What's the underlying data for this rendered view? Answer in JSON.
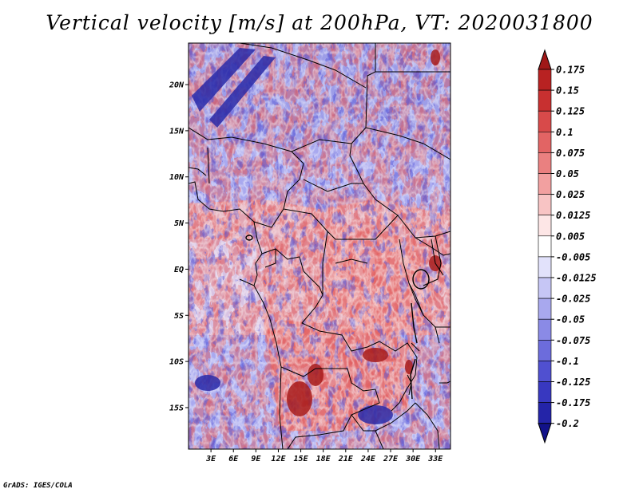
{
  "title": "Vertical velocity [m/s] at 200hPa, VT: 2020031800",
  "credit": "GrADS: IGES/COLA",
  "map": {
    "lat_labels": [
      "20N",
      "15N",
      "10N",
      "5N",
      "EQ",
      "5S",
      "10S",
      "15S"
    ],
    "lat_values": [
      20,
      15,
      10,
      5,
      0,
      -5,
      -10,
      -15
    ],
    "lon_labels": [
      "3E",
      "6E",
      "9E",
      "12E",
      "15E",
      "18E",
      "21E",
      "24E",
      "27E",
      "30E",
      "33E"
    ],
    "lon_values": [
      3,
      6,
      9,
      12,
      15,
      18,
      21,
      24,
      27,
      30,
      33
    ],
    "lon_range": [
      0,
      35
    ],
    "lat_range": [
      -19.5,
      24.5
    ]
  },
  "colorbar": {
    "labels": [
      "0.175",
      "0.15",
      "0.125",
      "0.1",
      "0.075",
      "0.05",
      "0.025",
      "0.0125",
      "0.005",
      "-0.005",
      "-0.0125",
      "-0.025",
      "-0.05",
      "-0.075",
      "-0.1",
      "-0.125",
      "-0.175",
      "-0.2"
    ],
    "colors": [
      "#a01818",
      "#b82222",
      "#c83030",
      "#d84a4a",
      "#e26464",
      "#ea8080",
      "#f2a0a0",
      "#f8c4c4",
      "#fde6e6",
      "#ffffff",
      "#e2e2fb",
      "#c6c6f5",
      "#a8a8ee",
      "#8a8ae6",
      "#6c6cdc",
      "#5050d0",
      "#3838c0",
      "#2424a8",
      "#12128a"
    ]
  }
}
